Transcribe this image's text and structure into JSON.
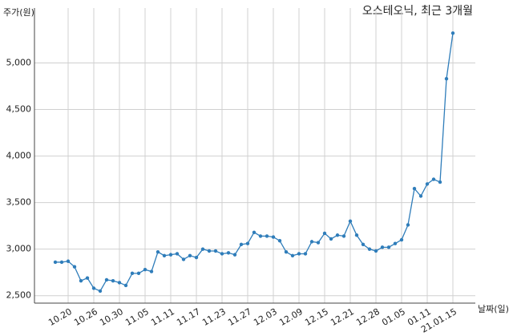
{
  "chart_data": {
    "type": "line",
    "title": "오스테오닉, 최근 3개월",
    "y_label": "주가(원)",
    "x_label": "날짜(일)",
    "categories": [
      null,
      null,
      "10.20",
      null,
      null,
      null,
      "10.26",
      null,
      null,
      null,
      "10.30",
      null,
      null,
      null,
      "11.05",
      null,
      null,
      null,
      "11.11",
      null,
      null,
      null,
      "11.17",
      null,
      null,
      null,
      "11.23",
      null,
      null,
      null,
      "11.27",
      null,
      null,
      null,
      "12.03",
      null,
      null,
      null,
      "12.09",
      null,
      null,
      null,
      "12.15",
      null,
      null,
      null,
      "12.21",
      null,
      null,
      null,
      "12.28",
      null,
      null,
      null,
      "01.05",
      null,
      null,
      null,
      "01.11",
      null,
      null,
      null,
      "21.01.15"
    ],
    "series": [
      {
        "name": "주가",
        "color": "#2f7dba",
        "values": [
          2860,
          2860,
          2870,
          2810,
          2660,
          2690,
          2580,
          2550,
          2670,
          2660,
          2640,
          2610,
          2740,
          2740,
          2780,
          2760,
          2970,
          2930,
          2940,
          2950,
          2890,
          2930,
          2910,
          3000,
          2980,
          2980,
          2950,
          2960,
          2940,
          3050,
          3060,
          3180,
          3140,
          3140,
          3130,
          3090,
          2970,
          2930,
          2950,
          2950,
          3080,
          3070,
          3170,
          3110,
          3150,
          3140,
          3300,
          3150,
          3050,
          3000,
          2980,
          3020,
          3020,
          3060,
          3100,
          3260,
          3650,
          3570,
          3700,
          3750,
          3720,
          4830,
          5320
        ]
      }
    ],
    "ylim": [
      2420,
      5590
    ],
    "yticks": [
      {
        "value": 2500,
        "label": "2,500"
      },
      {
        "value": 3000,
        "label": "3,000"
      },
      {
        "value": 3500,
        "label": "3,500"
      },
      {
        "value": 4000,
        "label": "4,000"
      },
      {
        "value": 4500,
        "label": "4,500"
      },
      {
        "value": 5000,
        "label": "5,000"
      }
    ],
    "grid": true
  }
}
